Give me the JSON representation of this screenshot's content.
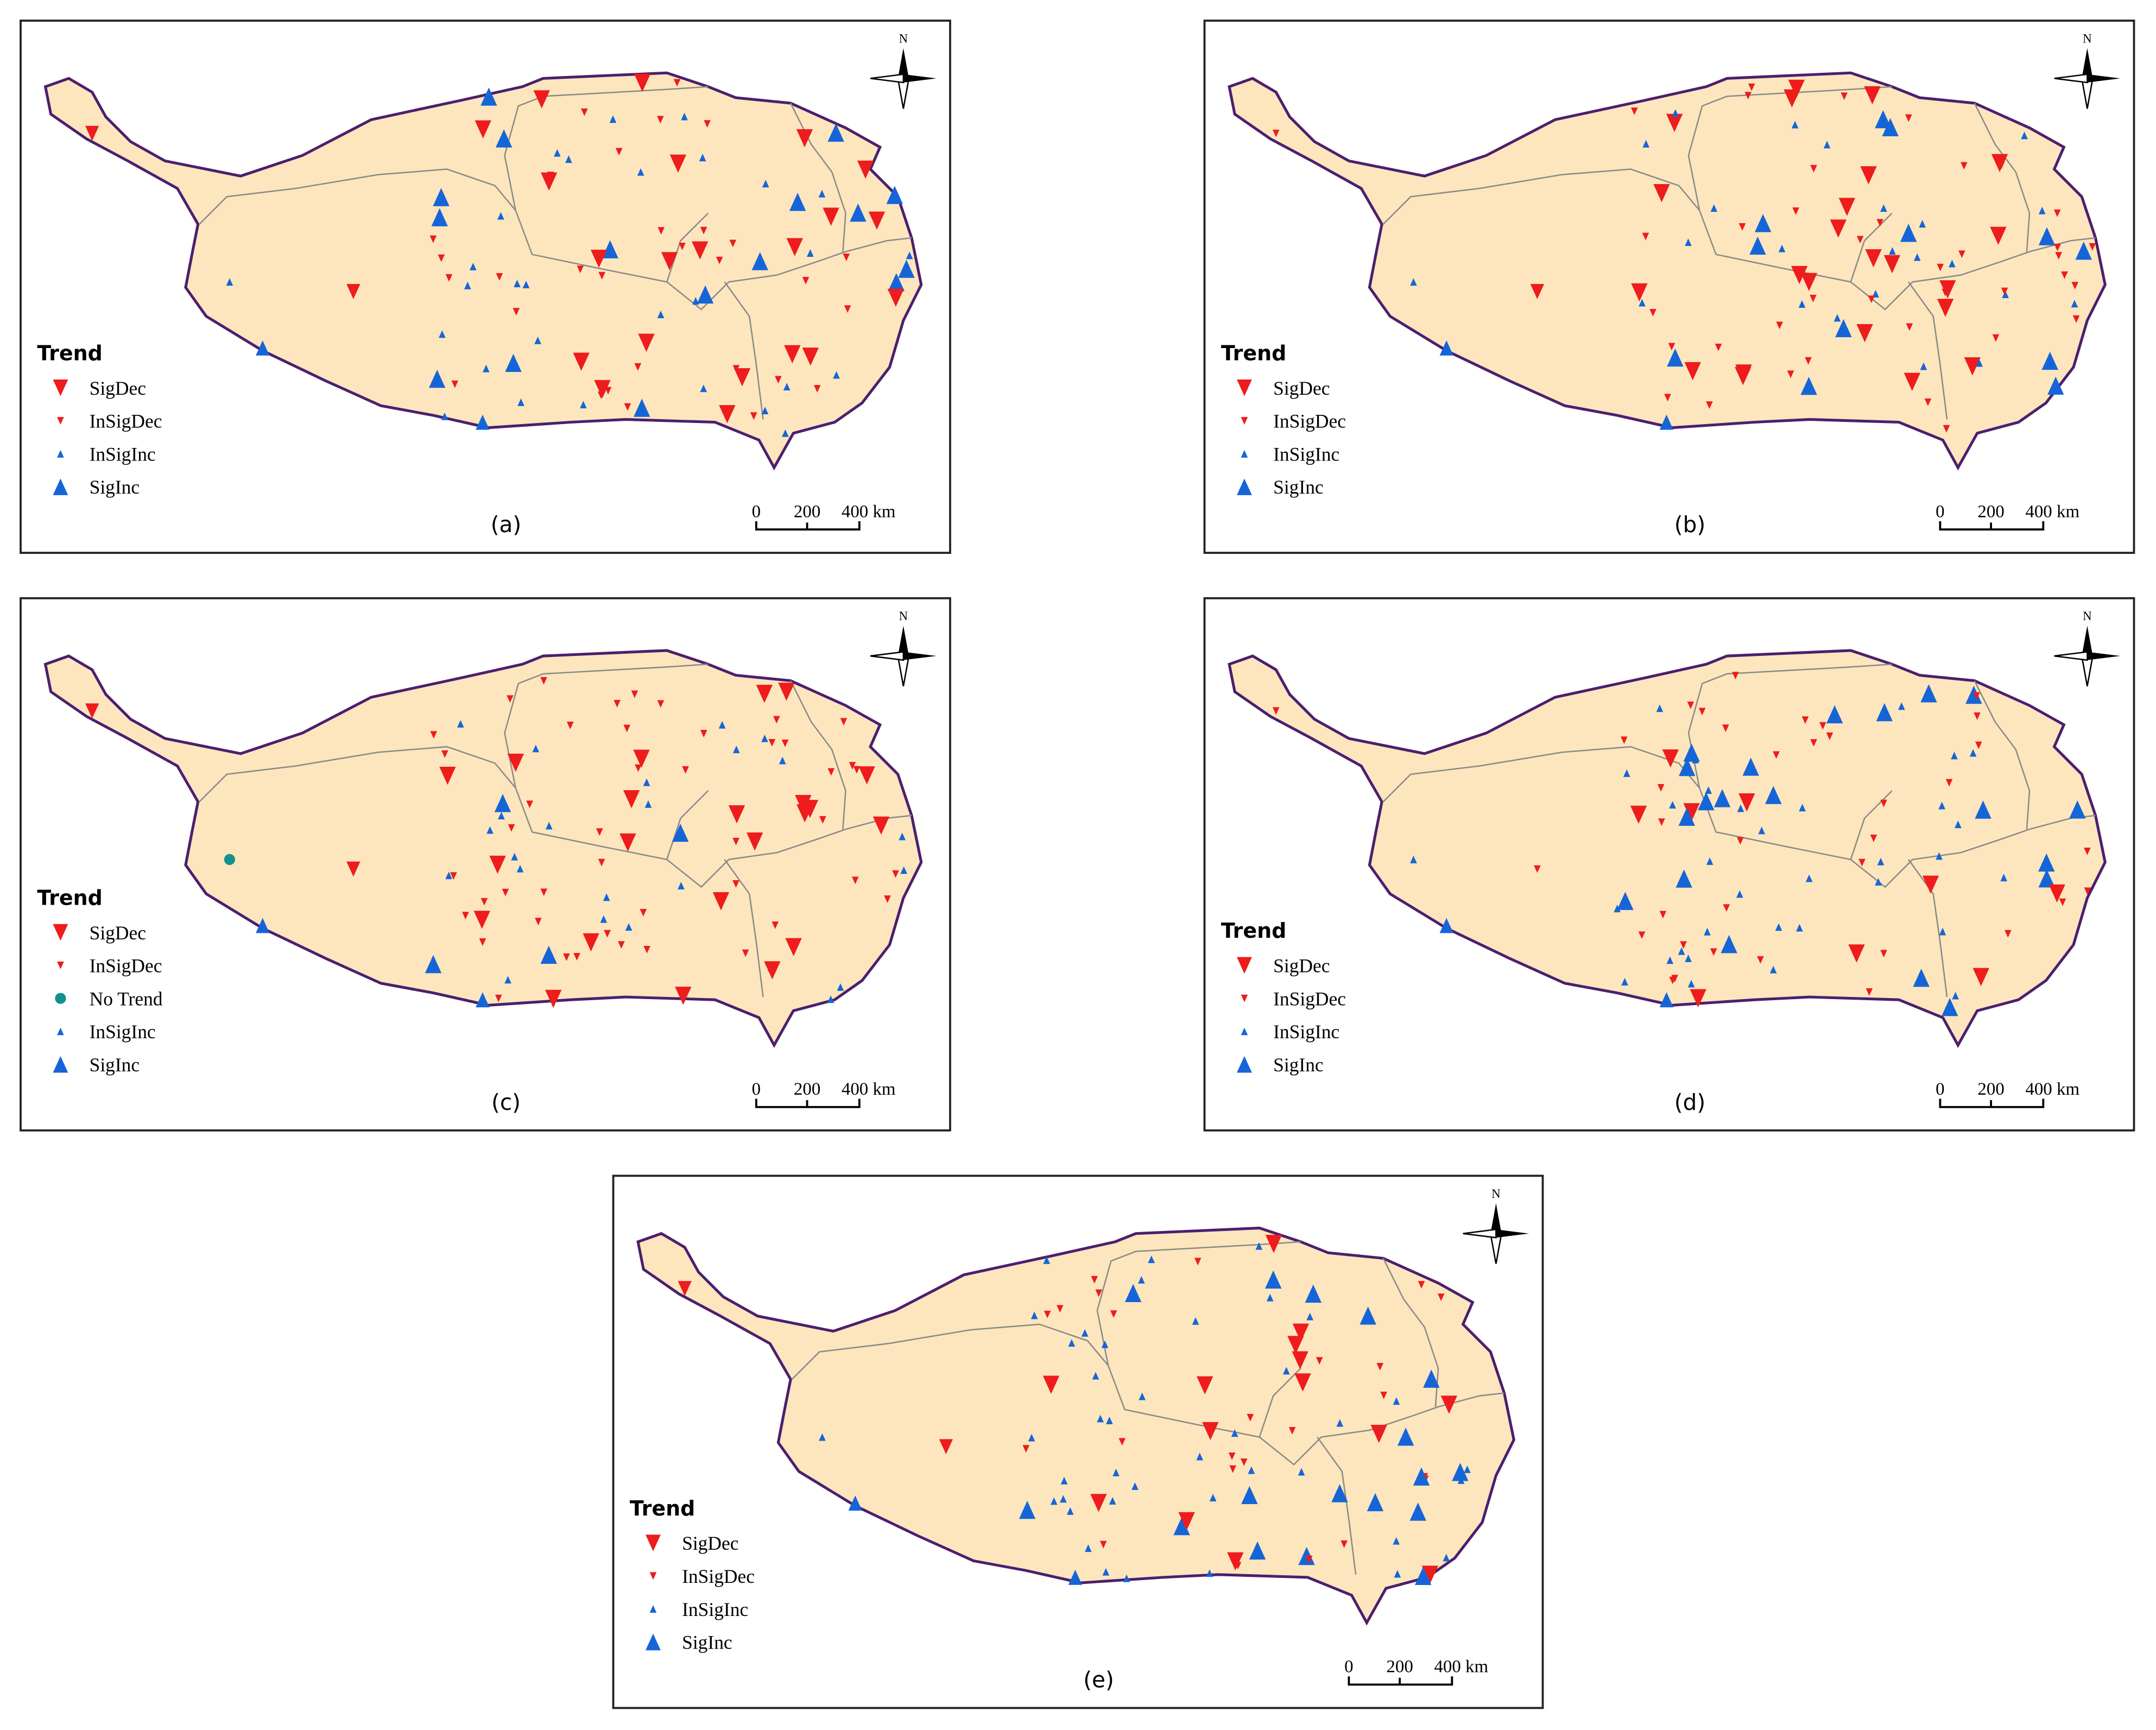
{
  "panels": [
    {
      "label": "(a)",
      "compass": "N",
      "scale": [
        "0",
        "200",
        "400 km"
      ],
      "legend": {
        "title": "Trend",
        "items": [
          "SigDec",
          "InSigDec",
          "InSigInc",
          "SigInc"
        ]
      }
    },
    {
      "label": "(b)",
      "compass": "N",
      "scale": [
        "0",
        "200",
        "400 km"
      ],
      "legend": {
        "title": "Trend",
        "items": [
          "SigDec",
          "InSigDec",
          "InSigInc",
          "SigInc"
        ]
      }
    },
    {
      "label": "(c)",
      "compass": "N",
      "scale": [
        "0",
        "200",
        "400 km"
      ],
      "legend": {
        "title": "Trend",
        "items": [
          "SigDec",
          "InSigDec",
          "No Trend",
          "InSigInc",
          "SigInc"
        ]
      }
    },
    {
      "label": "(d)",
      "compass": "N",
      "scale": [
        "0",
        "200",
        "400 km"
      ],
      "legend": {
        "title": "Trend",
        "items": [
          "SigDec",
          "InSigDec",
          "InSigInc",
          "SigInc"
        ]
      }
    },
    {
      "label": "(e)",
      "compass": "N",
      "scale": [
        "0",
        "200",
        "400 km"
      ],
      "legend": {
        "title": "Trend",
        "items": [
          "SigDec",
          "InSigDec",
          "InSigInc",
          "SigInc"
        ]
      }
    }
  ]
}
